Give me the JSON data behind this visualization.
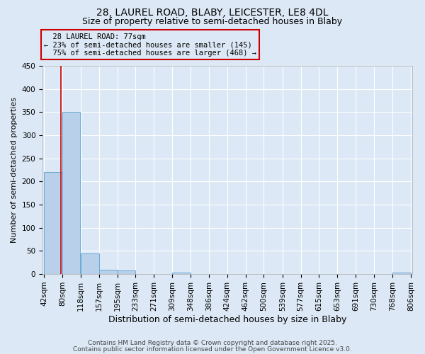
{
  "title1": "28, LAUREL ROAD, BLABY, LEICESTER, LE8 4DL",
  "title2": "Size of property relative to semi-detached houses in Blaby",
  "xlabel": "Distribution of semi-detached houses by size in Blaby",
  "ylabel": "Number of semi-detached properties",
  "bin_edges": [
    42,
    80,
    118,
    157,
    195,
    233,
    271,
    309,
    348,
    386,
    424,
    462,
    500,
    539,
    577,
    615,
    653,
    691,
    730,
    768,
    806
  ],
  "bar_heights": [
    220,
    350,
    45,
    9,
    8,
    0,
    0,
    3,
    0,
    0,
    0,
    0,
    0,
    0,
    0,
    0,
    0,
    0,
    0,
    3
  ],
  "bar_color": "#b8d0ea",
  "bar_edgecolor": "#6aaad4",
  "background_color": "#dce8f5",
  "grid_color": "#ffffff",
  "property_size": 77,
  "property_label": "28 LAUREL ROAD: 77sqm",
  "pct_smaller": 23,
  "n_smaller": 145,
  "pct_larger": 75,
  "n_larger": 468,
  "annotation_box_color": "#cc0000",
  "vline_color": "#cc0000",
  "ylim": [
    0,
    450
  ],
  "yticks": [
    0,
    50,
    100,
    150,
    200,
    250,
    300,
    350,
    400,
    450
  ],
  "footer_line1": "Contains HM Land Registry data © Crown copyright and database right 2025.",
  "footer_line2": "Contains public sector information licensed under the Open Government Licence v3.0.",
  "title1_fontsize": 10,
  "title2_fontsize": 9,
  "xlabel_fontsize": 9,
  "ylabel_fontsize": 8,
  "tick_fontsize": 7.5,
  "annotation_fontsize": 7.5,
  "footer_fontsize": 6.5
}
